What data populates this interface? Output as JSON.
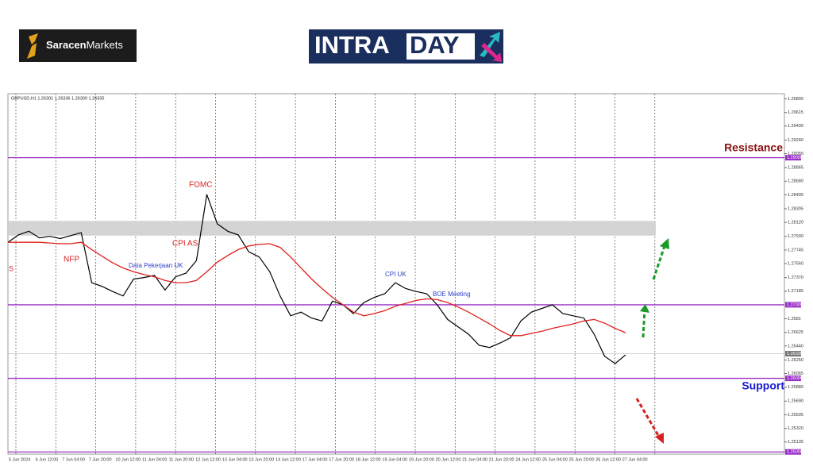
{
  "header": {
    "brand_bold": "Saracen",
    "brand_light": "Markets",
    "logo_a": "INTRA",
    "logo_b": "DAY"
  },
  "chart_data": {
    "type": "line",
    "info": "GBPUSD,H1 1.26301 1.26336 1.26300 1.26335",
    "color": "#000000",
    "values": [
      1.2785,
      1.2795,
      1.28,
      1.2791,
      1.2793,
      1.279,
      1.2794,
      1.2798,
      1.273,
      1.2725,
      1.2718,
      1.2712,
      1.2735,
      1.2737,
      1.274,
      1.272,
      1.2738,
      1.2743,
      1.276,
      1.285,
      1.281,
      1.28,
      1.2795,
      1.2772,
      1.2765,
      1.2745,
      1.2712,
      1.2685,
      1.269,
      1.2682,
      1.2678,
      1.2705,
      1.27,
      1.2688,
      1.2703,
      1.271,
      1.2715,
      1.273,
      1.2722,
      1.2718,
      1.2715,
      1.27,
      1.268,
      1.267,
      1.266,
      1.2645,
      1.2642,
      1.2648,
      1.2655,
      1.2678,
      1.269,
      1.2695,
      1.27,
      1.2688,
      1.2685,
      1.2682,
      1.266,
      1.263,
      1.262,
      1.2632
    ],
    "ma": {
      "color": "#e0201c",
      "values": [
        1.2785,
        1.2785,
        1.2785,
        1.2785,
        1.2784,
        1.2783,
        1.2783,
        1.2785,
        1.2775,
        1.2766,
        1.2757,
        1.275,
        1.2745,
        1.2741,
        1.2738,
        1.2733,
        1.273,
        1.273,
        1.2733,
        1.2745,
        1.2758,
        1.2767,
        1.2775,
        1.278,
        1.2782,
        1.2783,
        1.2778,
        1.2765,
        1.275,
        1.2735,
        1.2722,
        1.271,
        1.27,
        1.269,
        1.2685,
        1.2688,
        1.2692,
        1.2698,
        1.2702,
        1.2706,
        1.2708,
        1.2707,
        1.2703,
        1.2697,
        1.269,
        1.2682,
        1.2674,
        1.2665,
        1.2658,
        1.2658,
        1.2661,
        1.2664,
        1.2668,
        1.2671,
        1.2674,
        1.2678,
        1.268,
        1.2675,
        1.2668,
        1.2662
      ]
    },
    "ylim": [
      1.2497,
      1.2987
    ],
    "yticks": [
      {
        "value": 1.298,
        "label": "1.29800"
      },
      1.29615,
      {
        "value": 1.2943,
        "label": "1.29430"
      },
      {
        "value": 1.2924,
        "label": "1.29240"
      },
      1.29055,
      1.28865,
      {
        "value": 1.2868,
        "label": "1.28680"
      },
      1.28495,
      1.28305,
      {
        "value": 1.2812,
        "label": "1.28120"
      },
      {
        "value": 1.2793,
        "label": "1.27930"
      },
      1.27745,
      {
        "value": 1.2756,
        "label": "1.27560"
      },
      {
        "value": 1.2737,
        "label": "1.27370"
      },
      1.27185,
      1.2681,
      1.26625,
      {
        "value": 1.2644,
        "label": "1.26440"
      },
      {
        "value": 1.2625,
        "label": "1.26250"
      },
      1.26065,
      {
        "value": 1.2588,
        "label": "1.25880"
      },
      {
        "value": 1.2569,
        "label": "1.25690"
      },
      1.25505,
      {
        "value": 1.2532,
        "label": "1.25320"
      },
      1.25135
    ],
    "xlabels": [
      "5 Jun 2024",
      "6 Jun 12:00",
      "7 Jun 04:00",
      "7 Jun 20:00",
      "10 Jun 12:00",
      "11 Jun 04:00",
      "11 Jun 20:00",
      "12 Jun 12:00",
      "13 Jun 04:00",
      "13 Jun 20:00",
      "14 Jun 12:00",
      "17 Jun 04:00",
      "17 Jun 20:00",
      "18 Jun 12:00",
      "19 Jun 04:00",
      "19 Jun 20:00",
      "20 Jun 12:00",
      "21 Jun 04:00",
      "21 Jun 20:00",
      "24 Jun 12:00",
      "25 Jun 04:00",
      "25 Jun 20:00",
      "26 Jun 12:00",
      "27 Jun 04:00"
    ],
    "zone": [
      1.2794,
      1.2814
    ],
    "levels": [
      {
        "value": 1.29,
        "label": "1.29000"
      },
      {
        "value": 1.27,
        "label": "1.27000"
      },
      {
        "value": 1.26,
        "label": "1.26000"
      },
      {
        "value": 1.25,
        "label": "1.25000"
      }
    ],
    "level_color": "#9b30c8",
    "price_tag": {
      "value": 1.26335,
      "label": "1.26335"
    },
    "events": [
      "FOMC",
      "CPI AS",
      "NFP",
      "S",
      "Data Pekerjaan UK",
      "CPI UK",
      "BOE Meeting"
    ],
    "resistance": "Resistance",
    "support": "Support"
  }
}
